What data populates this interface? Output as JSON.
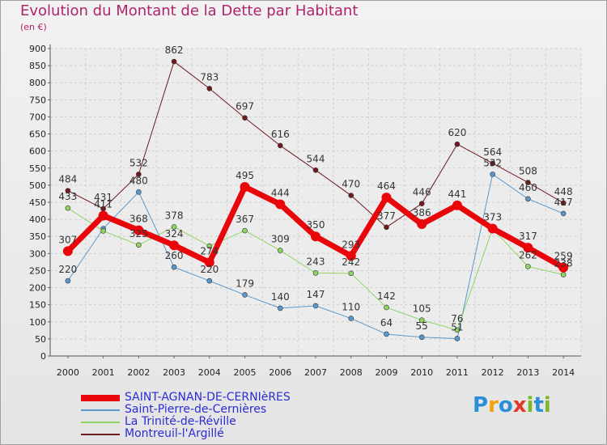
{
  "title": "Evolution du Montant de la Dette par Habitant",
  "subtitle": "(en €)",
  "logo": {
    "text": "Proxiti",
    "letters": [
      {
        "ch": "P",
        "color": "#2a8fd6"
      },
      {
        "ch": "r",
        "color": "#f2a20a"
      },
      {
        "ch": "o",
        "color": "#2a8fd6"
      },
      {
        "ch": "x",
        "color": "#e4362b"
      },
      {
        "ch": "i",
        "color": "#78b82a"
      },
      {
        "ch": "t",
        "color": "#2a8fd6"
      },
      {
        "ch": "i",
        "color": "#78b82a"
      }
    ]
  },
  "chart_data": {
    "type": "line",
    "x": [
      "2000",
      "2001",
      "2002",
      "2003",
      "2004",
      "2005",
      "2006",
      "2007",
      "2008",
      "2009",
      "2010",
      "2011",
      "2012",
      "2013",
      "2014"
    ],
    "ylim": [
      0,
      900
    ],
    "yticks": [
      0,
      50,
      100,
      150,
      200,
      250,
      300,
      350,
      400,
      450,
      500,
      550,
      600,
      650,
      700,
      750,
      800,
      850,
      900
    ],
    "grid": true,
    "legend_position": "bottom-left",
    "series": [
      {
        "name": "Montreuil-l'Argillé",
        "color": "#6e1a1e",
        "width": 1,
        "marker": 3,
        "values": [
          484,
          431,
          532,
          862,
          783,
          697,
          616,
          544,
          470,
          377,
          446,
          620,
          564,
          508,
          448
        ],
        "labels": [
          "484",
          "431",
          "532",
          "862",
          "783",
          "697",
          "616",
          "544",
          "470",
          "377",
          "446",
          "620",
          "564",
          "508",
          "448"
        ]
      },
      {
        "name": "Saint-Pierre-de-Cernières",
        "color": "#5a98cc",
        "width": 1,
        "marker": 3,
        "values": [
          220,
          373,
          480,
          260,
          220,
          179,
          140,
          147,
          110,
          64,
          55,
          51,
          532,
          460,
          417
        ],
        "labels": [
          "220",
          "",
          "480",
          "260",
          "220",
          "179",
          "140",
          "147",
          "110",
          "64",
          "55",
          "51",
          "532",
          "460",
          "417"
        ]
      },
      {
        "name": "La Trinité-de-Réville",
        "color": "#90d464",
        "width": 1,
        "marker": 3,
        "values": [
          433,
          366,
          325,
          378,
          322,
          367,
          309,
          243,
          242,
          142,
          105,
          76,
          373,
          262,
          238
        ],
        "labels": [
          "433",
          "",
          "325",
          "378",
          "",
          "367",
          "309",
          "243",
          "242",
          "142",
          "105",
          "76",
          "",
          "262",
          "238"
        ]
      },
      {
        "name": "SAINT-AGNAN-DE-CERNIèRES",
        "color": "#e8060a",
        "width": 7,
        "marker": 6,
        "values": [
          307,
          411,
          368,
          324,
          274,
          495,
          444,
          350,
          293,
          464,
          386,
          441,
          373,
          317,
          259
        ],
        "labels": [
          "307",
          "411",
          "368",
          "324",
          "274",
          "495",
          "444",
          "350",
          "293",
          "464",
          "386",
          "441",
          "373",
          "317",
          "259"
        ]
      }
    ],
    "legend": [
      {
        "name": "SAINT-AGNAN-DE-CERNIèRES",
        "color": "#e8060a",
        "thickness": 8
      },
      {
        "name": "Saint-Pierre-de-Cernières",
        "color": "#5a98cc",
        "thickness": 2
      },
      {
        "name": "La Trinité-de-Réville",
        "color": "#90d464",
        "thickness": 2
      },
      {
        "name": "Montreuil-l'Argillé",
        "color": "#6e1a1e",
        "thickness": 2
      }
    ]
  }
}
